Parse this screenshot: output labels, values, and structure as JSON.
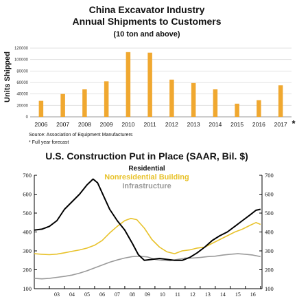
{
  "chart_data": [
    {
      "type": "bar",
      "title": "China Excavator Industry",
      "subtitle": "Annual Shipments to Customers",
      "subtitle2": "(10 ton and above)",
      "xlabel": "",
      "ylabel": "Units Shipped",
      "ylim": [
        0,
        120000
      ],
      "yticks": [
        "0",
        "20000",
        "40000",
        "60000",
        "80000",
        "100000",
        "120000"
      ],
      "grid": true,
      "color": "#F0A830",
      "categories": [
        "2006",
        "2007",
        "2008",
        "2009",
        "2010",
        "2011",
        "2012",
        "2013",
        "2014",
        "2015",
        "2016",
        "2017"
      ],
      "values": [
        28000,
        40000,
        48000,
        62000,
        113000,
        112000,
        65000,
        59000,
        48000,
        23000,
        29000,
        55000
      ],
      "forecast_marker": "*",
      "source": "Source: Association of Equipment Manufacturers",
      "footnote": "* Full year forecast"
    },
    {
      "type": "line",
      "title": "U.S. Construction Put in Place (SAAR, Bil. $)",
      "ylim": [
        100,
        700
      ],
      "yticks": [
        "100",
        "200",
        "300",
        "400",
        "500",
        "600",
        "700"
      ],
      "xticks": [
        "03",
        "04",
        "05",
        "06",
        "07",
        "08",
        "09",
        "10",
        "11",
        "12",
        "13",
        "14",
        "15",
        "16"
      ],
      "x_start": 2002.0,
      "x_end": 2017.1,
      "grid": false,
      "series": [
        {
          "name": "Residential",
          "color": "#000000",
          "x": [
            2002.0,
            2002.5,
            2003.0,
            2003.5,
            2004.0,
            2004.5,
            2005.0,
            2005.5,
            2005.9,
            2006.2,
            2006.6,
            2007.0,
            2007.5,
            2008.0,
            2008.5,
            2008.9,
            2009.3,
            2009.8,
            2010.3,
            2010.8,
            2011.3,
            2011.8,
            2012.3,
            2012.8,
            2013.3,
            2013.8,
            2014.3,
            2014.8,
            2015.3,
            2015.8,
            2016.3,
            2016.7,
            2017.0
          ],
          "values": [
            410,
            415,
            430,
            460,
            520,
            560,
            600,
            650,
            680,
            660,
            590,
            520,
            460,
            410,
            340,
            280,
            250,
            255,
            260,
            255,
            250,
            250,
            265,
            290,
            320,
            355,
            380,
            400,
            430,
            460,
            490,
            515,
            520
          ]
        },
        {
          "name": "Nonresidential Building",
          "color": "#E8C22A",
          "x": [
            2002.0,
            2002.5,
            2003.0,
            2003.5,
            2004.0,
            2004.5,
            2005.0,
            2005.5,
            2006.0,
            2006.5,
            2007.0,
            2007.5,
            2008.0,
            2008.4,
            2008.8,
            2009.3,
            2009.8,
            2010.3,
            2010.8,
            2011.3,
            2011.8,
            2012.3,
            2012.8,
            2013.3,
            2013.8,
            2014.3,
            2014.8,
            2015.3,
            2015.8,
            2016.3,
            2016.7,
            2017.0
          ],
          "values": [
            285,
            282,
            280,
            283,
            290,
            298,
            305,
            315,
            330,
            355,
            395,
            430,
            460,
            472,
            465,
            420,
            360,
            320,
            295,
            285,
            300,
            305,
            315,
            320,
            340,
            360,
            380,
            400,
            415,
            435,
            450,
            440
          ]
        },
        {
          "name": "Infrastructure",
          "color": "#9A9A9A",
          "x": [
            2002.0,
            2002.5,
            2003.0,
            2003.5,
            2004.0,
            2004.5,
            2005.0,
            2005.5,
            2006.0,
            2006.5,
            2007.0,
            2007.5,
            2008.0,
            2008.5,
            2009.0,
            2009.5,
            2010.0,
            2010.5,
            2011.0,
            2011.5,
            2012.0,
            2012.5,
            2013.0,
            2013.5,
            2014.0,
            2014.5,
            2015.0,
            2015.5,
            2016.0,
            2016.5,
            2017.0
          ],
          "values": [
            155,
            152,
            155,
            160,
            165,
            172,
            182,
            195,
            210,
            225,
            240,
            252,
            262,
            270,
            272,
            268,
            255,
            250,
            248,
            255,
            262,
            262,
            265,
            270,
            272,
            278,
            282,
            285,
            282,
            278,
            270
          ]
        }
      ]
    }
  ]
}
